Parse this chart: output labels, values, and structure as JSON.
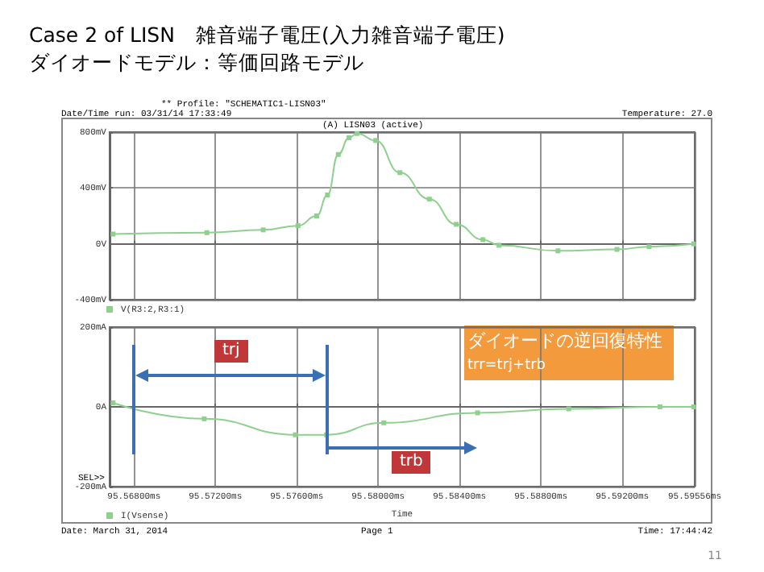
{
  "chart_data": [
    {
      "type": "line",
      "title": "Case 2 of LISN　雑音端子電圧(入力雑音端子電圧)",
      "subtitle": "ダイオードモデル：等価回路モデル",
      "annotations": [
        "** Profile: \"SCHEMATIC1-LISN03\"",
        "Date/Time run: 03/31/14 17:33:49",
        "Temperature: 27.0",
        "(A) LISN03 (active)"
      ],
      "x": [
        95.56697,
        95.57158,
        95.57435,
        95.57606,
        95.57698,
        95.57751,
        95.57804,
        95.57857,
        95.57896,
        95.57988,
        95.58107,
        95.58252,
        95.58384,
        95.58515,
        95.58594,
        95.58884,
        95.59174,
        95.59332,
        95.59551
      ],
      "series": [
        {
          "name": "V(R3:2,R3:1)",
          "color": "#8fd08f",
          "values": [
            70,
            80,
            100,
            130,
            200,
            350,
            640,
            760,
            790,
            740,
            510,
            320,
            140,
            30,
            -10,
            -50,
            -40,
            -20,
            0
          ]
        }
      ],
      "xlim": [
        95.5668,
        95.59556
      ],
      "xticks": [
        95.568,
        95.572,
        95.576,
        95.58,
        95.584,
        95.588,
        95.592,
        95.59556
      ],
      "ylim": [
        -400,
        800
      ],
      "yticks": [
        {
          "value": -400,
          "label": "-400mV"
        },
        {
          "value": 0,
          "label": "0V"
        },
        {
          "value": 400,
          "label": "400mV"
        },
        {
          "value": 800,
          "label": "800mV"
        }
      ],
      "grid": true,
      "legend": "bottom left",
      "marker": "square",
      "tick_labels": "y"
    },
    {
      "type": "line",
      "xlabel": "Time",
      "annotations": [
        "SEL>>",
        "trj",
        "trb",
        "ダイオードの逆回復特性",
        "trr=trj+trb",
        "Date: March 31, 2014",
        "Page 1",
        "Time: 17:44:42",
        "11"
      ],
      "x": [
        95.56697,
        95.57145,
        95.57593,
        95.57746,
        95.58028,
        95.58489,
        95.58937,
        95.59385,
        95.59551
      ],
      "series": [
        {
          "name": "I(Vsense)",
          "color": "#8fd08f",
          "values": [
            10,
            -30,
            -70,
            -70,
            -40,
            -15,
            -5,
            0,
            0
          ]
        }
      ],
      "xlim": [
        95.5668,
        95.59556
      ],
      "xticks": [
        {
          "value": 95.568,
          "label": "95.56800ms"
        },
        {
          "value": 95.572,
          "label": "95.57200ms"
        },
        {
          "value": 95.576,
          "label": "95.57600ms"
        },
        {
          "value": 95.58,
          "label": "95.58000ms"
        },
        {
          "value": 95.584,
          "label": "95.58400ms"
        },
        {
          "value": 95.588,
          "label": "95.58800ms"
        },
        {
          "value": 95.592,
          "label": "95.59200ms"
        },
        {
          "value": 95.59556,
          "label": "95.59556ms"
        }
      ],
      "ylim": [
        -200,
        200
      ],
      "yticks": [
        {
          "value": -200,
          "label": "-200mA"
        },
        {
          "value": 0,
          "label": "0A"
        },
        {
          "value": 200,
          "label": "200mA"
        }
      ],
      "grid": true,
      "legend": "bottom left",
      "marker": "square"
    }
  ]
}
